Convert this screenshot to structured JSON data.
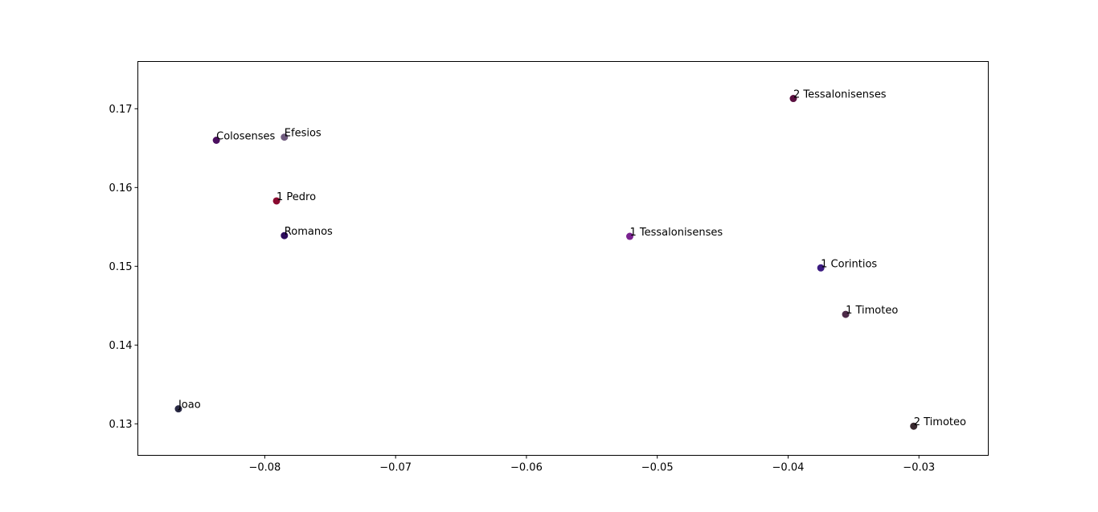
{
  "chart_data": {
    "type": "scatter",
    "title": "",
    "xlabel": "",
    "ylabel": "",
    "xlim": [
      -0.0897,
      -0.0247
    ],
    "ylim": [
      0.126,
      0.176
    ],
    "xticks": [
      -0.08,
      -0.07,
      -0.06,
      -0.05,
      -0.04,
      -0.03
    ],
    "xtick_labels": [
      "−0.08",
      "−0.07",
      "−0.06",
      "−0.05",
      "−0.04",
      "−0.03"
    ],
    "yticks": [
      0.13,
      0.14,
      0.15,
      0.16,
      0.17
    ],
    "ytick_labels": [
      "0.13",
      "0.14",
      "0.15",
      "0.16",
      "0.17"
    ],
    "grid": false,
    "points": [
      {
        "label": "2 Tessalonisenses",
        "x": -0.0396,
        "y": 0.1713,
        "color": "#5a1040"
      },
      {
        "label": "Colosenses",
        "x": -0.0837,
        "y": 0.166,
        "color": "#4b0f5f"
      },
      {
        "label": "Efesios",
        "x": -0.0785,
        "y": 0.1664,
        "color": "#705c7f"
      },
      {
        "label": "1 Pedro",
        "x": -0.0791,
        "y": 0.1583,
        "color": "#8a0a30"
      },
      {
        "label": "Romanos",
        "x": -0.0785,
        "y": 0.1539,
        "color": "#2d0c5c"
      },
      {
        "label": "1 Tessalonisenses",
        "x": -0.0521,
        "y": 0.1538,
        "color": "#7a2290"
      },
      {
        "label": "1 Corintios",
        "x": -0.0375,
        "y": 0.1498,
        "color": "#3b1b80"
      },
      {
        "label": "1 Timoteo",
        "x": -0.0356,
        "y": 0.1439,
        "color": "#4d2a48"
      },
      {
        "label": "Joao",
        "x": -0.0866,
        "y": 0.1319,
        "color": "#2a2a45"
      },
      {
        "label": "2 Timoteo",
        "x": -0.0304,
        "y": 0.1297,
        "color": "#3a2a30"
      }
    ]
  }
}
